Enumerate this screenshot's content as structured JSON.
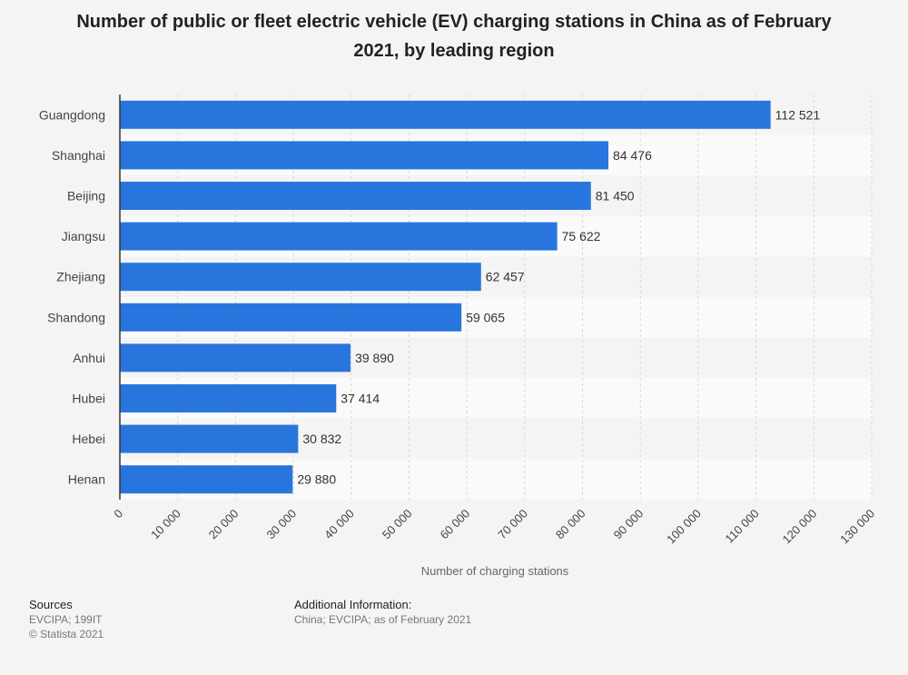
{
  "chart_data": {
    "type": "bar",
    "orientation": "horizontal",
    "title": "Number of public or fleet electric vehicle (EV) charging stations in China as of February 2021, by leading region",
    "xlabel": "Number of charging stations",
    "ylabel": "",
    "categories": [
      "Guangdong",
      "Shanghai",
      "Beijing",
      "Jiangsu",
      "Zhejiang",
      "Shandong",
      "Anhui",
      "Hubei",
      "Hebei",
      "Henan"
    ],
    "values": [
      112521,
      84476,
      81450,
      75622,
      62457,
      59065,
      39890,
      37414,
      30832,
      29880
    ],
    "data_labels": [
      "112 521",
      "84 476",
      "81 450",
      "75 622",
      "62 457",
      "59 065",
      "39 890",
      "37 414",
      "30 832",
      "29 880"
    ],
    "xlim": [
      0,
      130000
    ],
    "ticks": [
      0,
      10000,
      20000,
      30000,
      40000,
      50000,
      60000,
      70000,
      80000,
      90000,
      100000,
      110000,
      120000,
      130000
    ],
    "tick_labels": [
      "0",
      "10 000",
      "20 000",
      "30 000",
      "40 000",
      "50 000",
      "60 000",
      "70 000",
      "80 000",
      "90 000",
      "100 000",
      "110 000",
      "120 000",
      "130 000"
    ],
    "grid": true,
    "bar_color": "#2876dd"
  },
  "footer": {
    "sources_heading": "Sources",
    "sources_line1": "EVCIPA; 199IT",
    "sources_line2": "© Statista 2021",
    "info_heading": "Additional Information:",
    "info_text": "China; EVCIPA; as of February 2021"
  }
}
